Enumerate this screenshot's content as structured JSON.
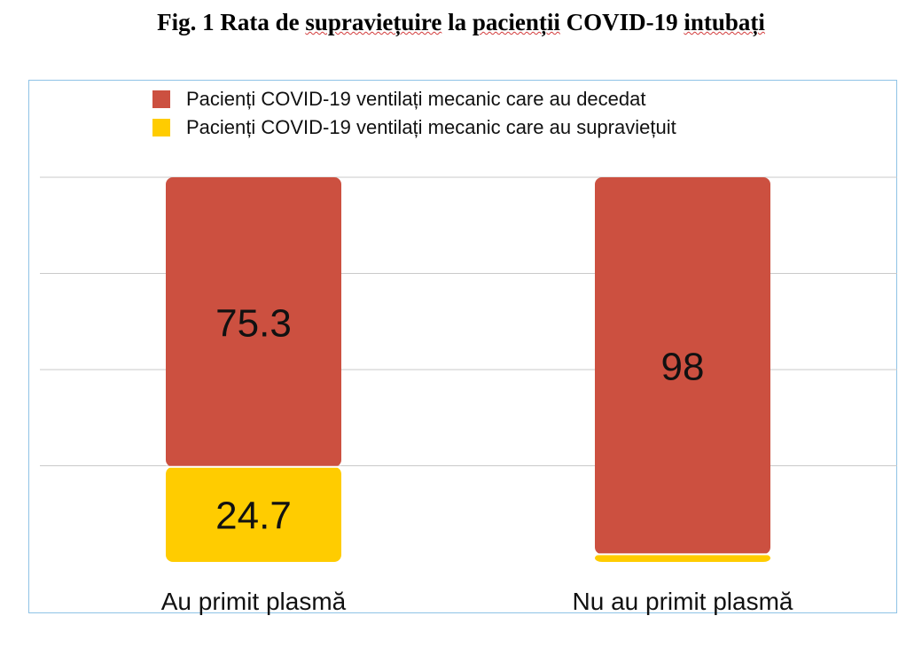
{
  "figure": {
    "title_prefix": "Fig. 1 Rata de ",
    "title_word1": "supraviețuire",
    "title_mid": " la ",
    "title_word2": "pacienții",
    "title_mid2": " COVID-19 ",
    "title_word3": "intubați"
  },
  "chart_data": {
    "type": "bar",
    "stacked": true,
    "categories": [
      "Au primit plasmă",
      "Nu au primit plasmă"
    ],
    "series": [
      {
        "name": "Pacienți COVID-19 ventilați mecanic care au supraviețuit",
        "values": [
          24.7,
          2
        ],
        "color": "#ffcc00"
      },
      {
        "name": "Pacienți COVID-19 ventilați mecanic care au decedat",
        "values": [
          75.3,
          98
        ],
        "color": "#cc5040"
      }
    ],
    "ylim": [
      0,
      100
    ],
    "grid": true,
    "legend_position": "top"
  }
}
